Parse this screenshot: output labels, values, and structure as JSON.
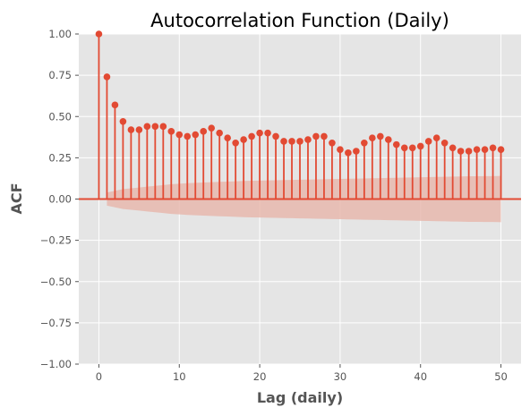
{
  "chart_data": {
    "type": "stem",
    "title": "Autocorrelation Function (Daily)",
    "xlabel": "Lag (daily)",
    "ylabel": "ACF",
    "xlim": [
      -2.5,
      52.5
    ],
    "ylim": [
      -1.0,
      1.0
    ],
    "x_ticks": [
      0,
      10,
      20,
      30,
      40,
      50
    ],
    "x_tick_labels": [
      "0",
      "10",
      "20",
      "30",
      "40",
      "50"
    ],
    "y_ticks": [
      -1.0,
      -0.75,
      -0.5,
      -0.25,
      0.0,
      0.25,
      0.5,
      0.75,
      1.0
    ],
    "y_tick_labels": [
      "−1.00",
      "−0.75",
      "−0.50",
      "−0.25",
      "0.00",
      "0.25",
      "0.50",
      "0.75",
      "1.00"
    ],
    "grid": true,
    "lags": [
      0,
      1,
      2,
      3,
      4,
      5,
      6,
      7,
      8,
      9,
      10,
      11,
      12,
      13,
      14,
      15,
      16,
      17,
      18,
      19,
      20,
      21,
      22,
      23,
      24,
      25,
      26,
      27,
      28,
      29,
      30,
      31,
      32,
      33,
      34,
      35,
      36,
      37,
      38,
      39,
      40,
      41,
      42,
      43,
      44,
      45,
      46,
      47,
      48,
      49,
      50
    ],
    "values": [
      1.0,
      0.74,
      0.57,
      0.47,
      0.42,
      0.42,
      0.44,
      0.44,
      0.44,
      0.41,
      0.39,
      0.38,
      0.39,
      0.41,
      0.43,
      0.4,
      0.37,
      0.34,
      0.36,
      0.38,
      0.4,
      0.4,
      0.38,
      0.35,
      0.35,
      0.35,
      0.36,
      0.38,
      0.38,
      0.34,
      0.3,
      0.28,
      0.29,
      0.34,
      0.37,
      0.38,
      0.36,
      0.33,
      0.31,
      0.31,
      0.32,
      0.35,
      0.37,
      0.34,
      0.31,
      0.29,
      0.29,
      0.3,
      0.3,
      0.31,
      0.3
    ],
    "confidence_upper": [
      0.0,
      0.04,
      0.05,
      0.06,
      0.065,
      0.07,
      0.075,
      0.08,
      0.085,
      0.09,
      0.093,
      0.096,
      0.098,
      0.1,
      0.102,
      0.104,
      0.106,
      0.108,
      0.11,
      0.111,
      0.112,
      0.113,
      0.114,
      0.115,
      0.116,
      0.117,
      0.118,
      0.119,
      0.12,
      0.121,
      0.122,
      0.123,
      0.124,
      0.125,
      0.126,
      0.127,
      0.128,
      0.129,
      0.13,
      0.131,
      0.132,
      0.133,
      0.134,
      0.135,
      0.136,
      0.137,
      0.138,
      0.138,
      0.139,
      0.139,
      0.14
    ],
    "confidence_lower": [
      0.0,
      -0.04,
      -0.05,
      -0.06,
      -0.065,
      -0.07,
      -0.075,
      -0.08,
      -0.085,
      -0.09,
      -0.093,
      -0.096,
      -0.098,
      -0.1,
      -0.102,
      -0.104,
      -0.106,
      -0.108,
      -0.11,
      -0.111,
      -0.112,
      -0.113,
      -0.114,
      -0.115,
      -0.116,
      -0.117,
      -0.118,
      -0.119,
      -0.12,
      -0.121,
      -0.122,
      -0.123,
      -0.124,
      -0.125,
      -0.126,
      -0.127,
      -0.128,
      -0.129,
      -0.13,
      -0.131,
      -0.132,
      -0.133,
      -0.134,
      -0.135,
      -0.136,
      -0.137,
      -0.138,
      -0.138,
      -0.139,
      -0.139,
      -0.14
    ],
    "colors": {
      "stem": "#E24A33",
      "band": "#E8B8AE",
      "background": "#E5E5E5",
      "grid": "#FFFFFF",
      "tick_text": "#555555"
    }
  }
}
